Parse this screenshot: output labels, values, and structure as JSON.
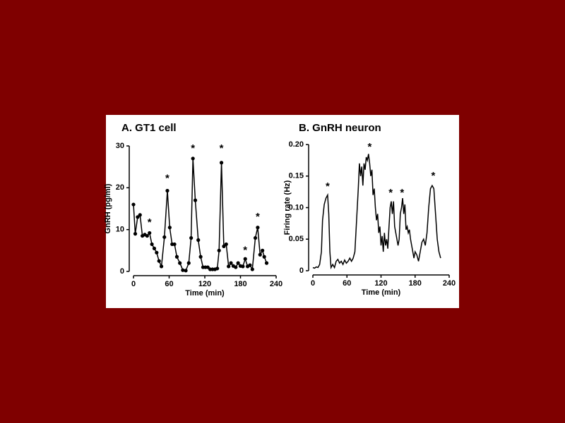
{
  "chart_data": [
    {
      "type": "line",
      "title": "A.  GT1 cell",
      "x_label": "Time (min)",
      "y_label": "GnRH (pg/ml)",
      "markers": true,
      "color": "#000000",
      "x": [
        0,
        3,
        7,
        11,
        15,
        19,
        23,
        27,
        31,
        35,
        39,
        43,
        47,
        52,
        57,
        61,
        65,
        69,
        73,
        78,
        83,
        88,
        93,
        97,
        100,
        104,
        109,
        113,
        117,
        121,
        125,
        129,
        133,
        137,
        141,
        144,
        148,
        152,
        156,
        160,
        164,
        168,
        172,
        176,
        180,
        184,
        188,
        192,
        196,
        200,
        205,
        209,
        213,
        217,
        220,
        224
      ],
      "values": [
        16,
        9,
        13,
        13.5,
        8.5,
        8.8,
        8.5,
        9.2,
        6.5,
        5.5,
        4.5,
        2.5,
        1.2,
        8.2,
        19.3,
        10.5,
        6.5,
        6.5,
        3.5,
        2,
        0.3,
        0.2,
        2,
        8,
        27,
        17,
        7.5,
        3.5,
        1,
        1,
        1,
        0.5,
        0.5,
        0.5,
        0.7,
        5,
        26,
        6,
        6.5,
        1.2,
        2,
        1.3,
        1,
        2,
        1.3,
        1.2,
        3,
        1.2,
        1.5,
        0.5,
        8,
        10.5,
        4,
        5,
        3.5,
        2
      ],
      "xlim": [
        0,
        240
      ],
      "xticks": [
        0,
        60,
        120,
        180,
        240
      ],
      "ylim": [
        0,
        30
      ],
      "yticks": [
        0,
        10,
        20,
        30
      ],
      "annotations": [
        {
          "x": 27,
          "y": 12,
          "text": "*"
        },
        {
          "x": 57,
          "y": 22.5,
          "text": "*"
        },
        {
          "x": 100,
          "y": 29.7,
          "text": "*"
        },
        {
          "x": 148,
          "y": 29.7,
          "text": "*"
        },
        {
          "x": 188,
          "y": 5.3,
          "text": "*"
        },
        {
          "x": 209,
          "y": 13.3,
          "text": "*"
        }
      ]
    },
    {
      "type": "line",
      "title": "B.  GnRH neuron",
      "x_label": "Time (min)",
      "y_label": "Firing rate (Hz)",
      "markers": false,
      "color": "#000000",
      "x": [
        0,
        3,
        6,
        9,
        12,
        15,
        17,
        20,
        23,
        26,
        28,
        30,
        32,
        35,
        38,
        41,
        44,
        47,
        50,
        53,
        56,
        59,
        62,
        65,
        68,
        71,
        74,
        77,
        80,
        82,
        84,
        86,
        88,
        90,
        92,
        94,
        96,
        98,
        100,
        102,
        104,
        106,
        108,
        110,
        112,
        114,
        116,
        118,
        120,
        122,
        124,
        126,
        128,
        130,
        132,
        134,
        136,
        138,
        140,
        142,
        144,
        146,
        148,
        150,
        152,
        154,
        156,
        158,
        160,
        162,
        164,
        166,
        168,
        170,
        172,
        174,
        176,
        178,
        180,
        183,
        186,
        189,
        192,
        195,
        198,
        201,
        204,
        207,
        210,
        213,
        216,
        219,
        222,
        225
      ],
      "values": [
        0.005,
        0.004,
        0.006,
        0.005,
        0.01,
        0.03,
        0.08,
        0.105,
        0.115,
        0.12,
        0.09,
        0.03,
        0.005,
        0.01,
        0.005,
        0.015,
        0.018,
        0.012,
        0.015,
        0.01,
        0.017,
        0.012,
        0.015,
        0.02,
        0.015,
        0.02,
        0.03,
        0.08,
        0.13,
        0.17,
        0.15,
        0.165,
        0.135,
        0.17,
        0.16,
        0.18,
        0.175,
        0.185,
        0.17,
        0.15,
        0.16,
        0.12,
        0.13,
        0.1,
        0.08,
        0.09,
        0.06,
        0.07,
        0.04,
        0.055,
        0.03,
        0.06,
        0.04,
        0.05,
        0.035,
        0.07,
        0.1,
        0.11,
        0.09,
        0.11,
        0.07,
        0.06,
        0.05,
        0.04,
        0.05,
        0.09,
        0.1,
        0.115,
        0.09,
        0.105,
        0.065,
        0.07,
        0.06,
        0.065,
        0.05,
        0.04,
        0.03,
        0.02,
        0.03,
        0.025,
        0.015,
        0.03,
        0.045,
        0.05,
        0.04,
        0.06,
        0.1,
        0.13,
        0.135,
        0.13,
        0.09,
        0.05,
        0.03,
        0.02
      ],
      "xlim": [
        0,
        240
      ],
      "xticks": [
        0,
        60,
        120,
        180,
        240
      ],
      "ylim": [
        0,
        0.2
      ],
      "yticks": [
        0,
        0.05,
        {
          "value": 0.1,
          "label": "0.10"
        },
        0.15,
        {
          "value": 0.2,
          "label": "0.20"
        }
      ],
      "annotations": [
        {
          "x": 26,
          "y": 0.135,
          "text": "*"
        },
        {
          "x": 100,
          "y": 0.198,
          "text": "*"
        },
        {
          "x": 137,
          "y": 0.125,
          "text": "*"
        },
        {
          "x": 157,
          "y": 0.125,
          "text": "*"
        },
        {
          "x": 212,
          "y": 0.152,
          "text": "*"
        }
      ]
    }
  ]
}
